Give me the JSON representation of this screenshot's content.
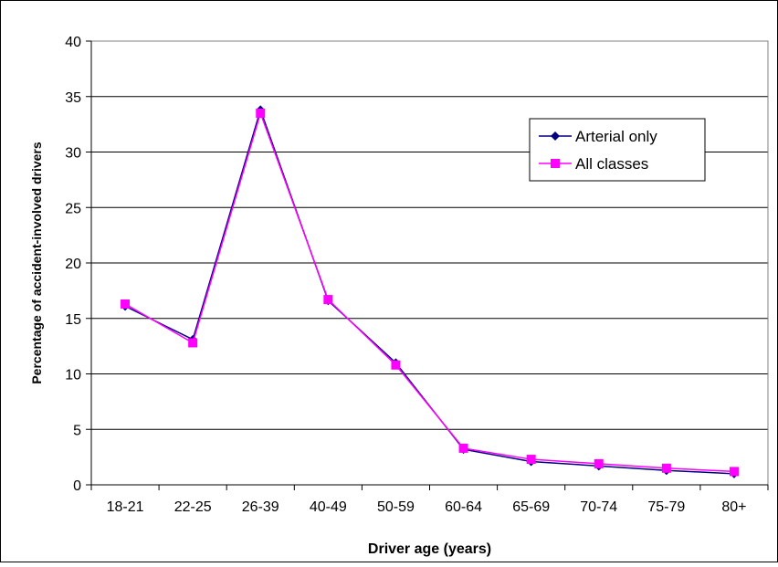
{
  "chart_data": {
    "type": "line",
    "title": "",
    "xlabel": "Driver age (years)",
    "ylabel": "Percentage of accident-involved drivers",
    "categories": [
      "18-21",
      "22-25",
      "26-39",
      "40-49",
      "50-59",
      "60-64",
      "65-69",
      "70-74",
      "75-79",
      "80+"
    ],
    "ylim": [
      0,
      40
    ],
    "yticks": [
      0,
      5,
      10,
      15,
      20,
      25,
      30,
      35,
      40
    ],
    "grid": "horizontal",
    "legend_position": "right",
    "series": [
      {
        "name": "Arterial only",
        "color": "#000080",
        "marker": "diamond",
        "values": [
          16.1,
          13.1,
          33.8,
          16.6,
          11.0,
          3.2,
          2.1,
          1.7,
          1.3,
          1.0
        ]
      },
      {
        "name": "All classes",
        "color": "#FF00FF",
        "marker": "square",
        "values": [
          16.3,
          12.8,
          33.5,
          16.7,
          10.8,
          3.3,
          2.3,
          1.9,
          1.5,
          1.2
        ]
      }
    ]
  }
}
